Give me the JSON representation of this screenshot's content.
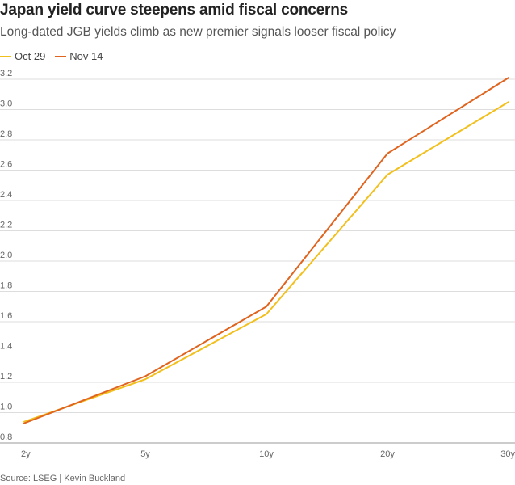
{
  "chart_data": {
    "type": "line",
    "title": "Japan yield curve steepens amid fiscal concerns",
    "subtitle": "Long-dated JGB yields climb as new premier signals looser fiscal policy",
    "categories": [
      "2y",
      "5y",
      "10y",
      "20y",
      "30y"
    ],
    "series": [
      {
        "name": "Oct 29",
        "color": "#f2c01d",
        "values": [
          0.94,
          1.22,
          1.65,
          2.57,
          3.05
        ]
      },
      {
        "name": "Nov 14",
        "color": "#e0631e",
        "values": [
          0.93,
          1.24,
          1.7,
          2.71,
          3.21
        ]
      }
    ],
    "ylim": [
      0.8,
      3.2
    ],
    "yticks": [
      "0.8",
      "1.0",
      "1.2",
      "1.4",
      "1.6",
      "1.8",
      "2.0",
      "2.2",
      "2.4",
      "2.6",
      "2.8",
      "3.0",
      "3.2"
    ],
    "grid": true,
    "legend_position": "top-left",
    "xlabel": "",
    "ylabel": ""
  },
  "legend": {
    "items": [
      {
        "label": "Oct 29",
        "color": "#f2c01d"
      },
      {
        "label": "Nov 14",
        "color": "#e0631e"
      }
    ]
  },
  "source": "Source: LSEG | Kevin Buckland"
}
